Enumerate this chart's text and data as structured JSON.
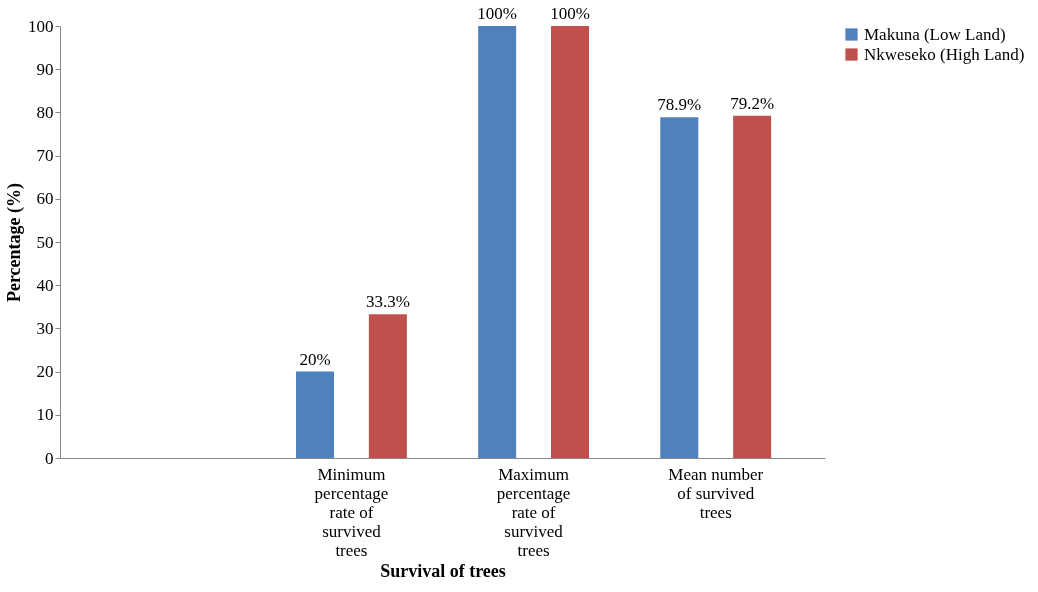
{
  "chart_data": {
    "type": "bar",
    "xlabel": "Survival of trees",
    "ylabel": "Percentage (%)",
    "categories": [
      null,
      "Minimum percentage rate of survived trees",
      "Maximum percentage rate of survived trees",
      "Mean number of survived trees"
    ],
    "series": [
      {
        "name": "Makuna (Low Land)",
        "color": "#4f81bd",
        "values": [
          null,
          20,
          100,
          78.9
        ],
        "value_labels": [
          null,
          "20%",
          "100%",
          "78.9%"
        ]
      },
      {
        "name": "Nkweseko (High Land)",
        "color": "#c0504d",
        "values": [
          null,
          33.3,
          100,
          79.2
        ],
        "value_labels": [
          null,
          "33.3%",
          "100%",
          "79.2%"
        ]
      }
    ],
    "ylim": [
      0,
      100
    ],
    "yticks": [
      0,
      10,
      20,
      30,
      40,
      50,
      60,
      70,
      80,
      90,
      100
    ],
    "grid": false,
    "legend": "right"
  }
}
